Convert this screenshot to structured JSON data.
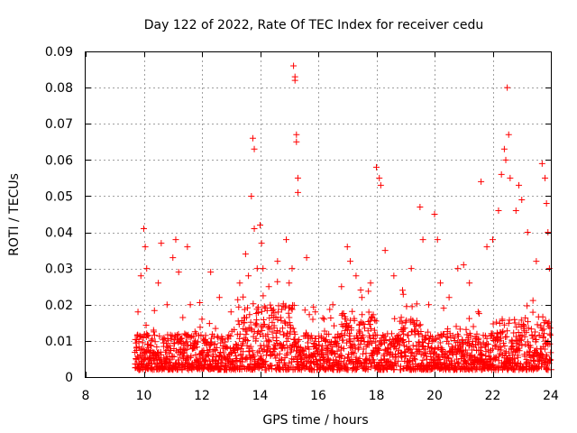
{
  "chart_data": {
    "type": "scatter",
    "title": "Day 122 of 2022, Rate Of TEC Index for receiver cedu",
    "xlabel": "GPS time / hours",
    "ylabel": "ROTI / TECUs",
    "xlim": [
      8,
      24
    ],
    "ylim": [
      0,
      0.09
    ],
    "xticks": [
      8,
      10,
      12,
      14,
      16,
      18,
      20,
      22,
      24
    ],
    "xtick_labels": [
      "8",
      "10",
      "12",
      "14",
      "16",
      "18",
      "20",
      "22",
      "24"
    ],
    "yticks": [
      0,
      0.01,
      0.02,
      0.03,
      0.04,
      0.05,
      0.06,
      0.07,
      0.08,
      0.09
    ],
    "ytick_labels": [
      "0",
      "0.01",
      "0.02",
      "0.03",
      "0.04",
      "0.05",
      "0.06",
      "0.07",
      "0.08",
      "0.09"
    ],
    "grid": true,
    "marker": "+",
    "marker_color": "#ff0000",
    "series": [
      {
        "name": "ROTI",
        "color": "#ff0000",
        "x": [
          9.75,
          9.8,
          9.9,
          10.0,
          10.05,
          10.1,
          10.1,
          10.15,
          10.5,
          10.6,
          10.8,
          11.0,
          11.1,
          11.2,
          11.5,
          11.6,
          11.8,
          12.0,
          12.3,
          12.6,
          13.0,
          13.3,
          13.5,
          13.6,
          13.7,
          13.75,
          13.8,
          13.8,
          13.9,
          14.0,
          14.05,
          14.1,
          14.3,
          14.6,
          14.9,
          15.0,
          15.1,
          15.15,
          15.2,
          15.2,
          15.25,
          15.25,
          15.3,
          15.3,
          15.6,
          15.9,
          16.2,
          16.5,
          16.8,
          17.0,
          17.1,
          17.3,
          17.5,
          17.8,
          18.0,
          18.1,
          18.15,
          18.3,
          18.6,
          18.9,
          19.2,
          19.5,
          19.6,
          19.8,
          20.0,
          20.1,
          20.2,
          20.5,
          20.8,
          21.0,
          21.2,
          21.5,
          21.6,
          21.8,
          22.0,
          22.2,
          22.3,
          22.4,
          22.45,
          22.5,
          22.55,
          22.6,
          22.8,
          22.9,
          23.0,
          23.2,
          23.5,
          23.7,
          23.8,
          23.85,
          23.9,
          23.95
        ],
        "y": [
          0.008,
          0.018,
          0.028,
          0.041,
          0.036,
          0.03,
          0.012,
          0.009,
          0.026,
          0.037,
          0.02,
          0.033,
          0.038,
          0.029,
          0.036,
          0.02,
          0.012,
          0.016,
          0.029,
          0.022,
          0.018,
          0.026,
          0.034,
          0.028,
          0.05,
          0.066,
          0.063,
          0.041,
          0.03,
          0.042,
          0.037,
          0.03,
          0.025,
          0.032,
          0.038,
          0.026,
          0.03,
          0.086,
          0.083,
          0.082,
          0.067,
          0.065,
          0.055,
          0.051,
          0.033,
          0.018,
          0.016,
          0.02,
          0.025,
          0.036,
          0.032,
          0.028,
          0.022,
          0.026,
          0.058,
          0.055,
          0.053,
          0.035,
          0.028,
          0.024,
          0.03,
          0.047,
          0.038,
          0.02,
          0.045,
          0.038,
          0.026,
          0.022,
          0.03,
          0.031,
          0.026,
          0.018,
          0.054,
          0.036,
          0.038,
          0.046,
          0.056,
          0.063,
          0.06,
          0.08,
          0.067,
          0.055,
          0.046,
          0.053,
          0.049,
          0.04,
          0.032,
          0.059,
          0.055,
          0.048,
          0.04,
          0.03
        ]
      }
    ]
  }
}
